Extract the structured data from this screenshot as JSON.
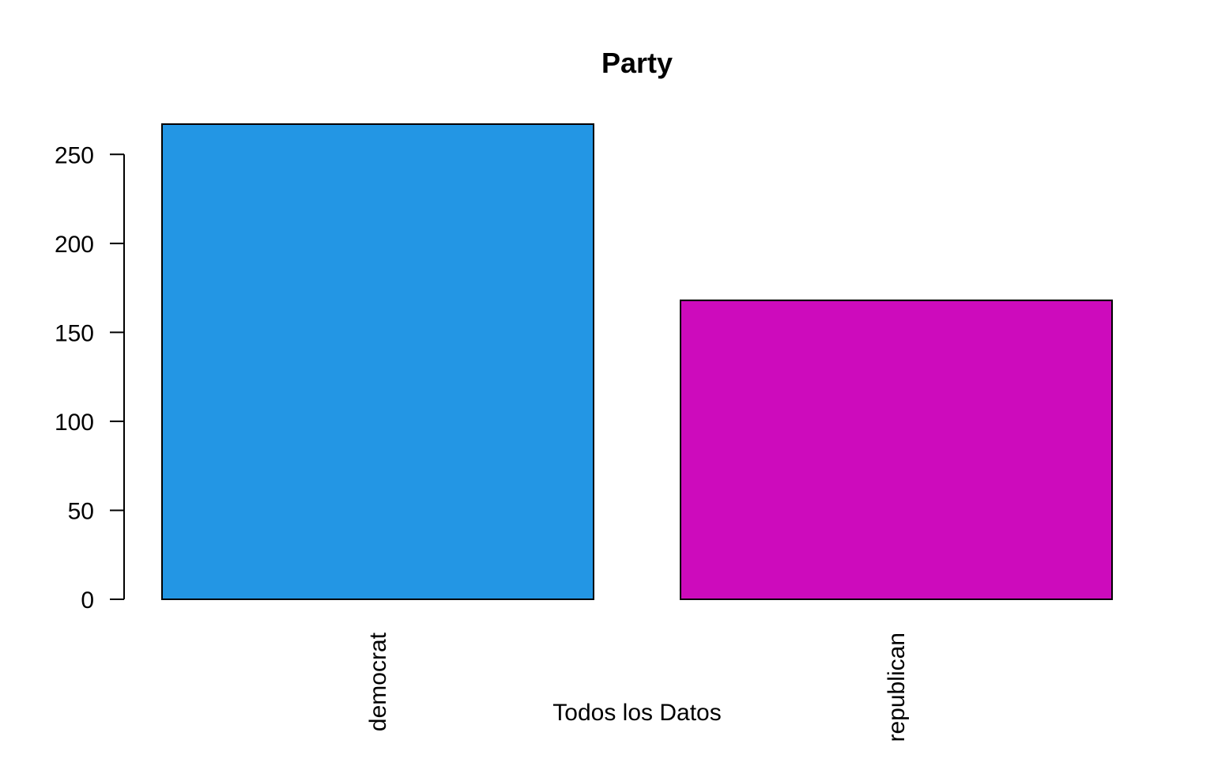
{
  "chart_data": {
    "type": "bar",
    "title": "Party",
    "xlabel": "Todos los Datos",
    "ylabel": "",
    "categories": [
      "democrat",
      "republican"
    ],
    "values": [
      267,
      168
    ],
    "colors": [
      "#2396E4",
      "#CD0BBC"
    ],
    "ylim": [
      0,
      267
    ],
    "yticks": [
      0,
      50,
      100,
      150,
      200,
      250
    ],
    "grid": false,
    "legend": "none"
  }
}
